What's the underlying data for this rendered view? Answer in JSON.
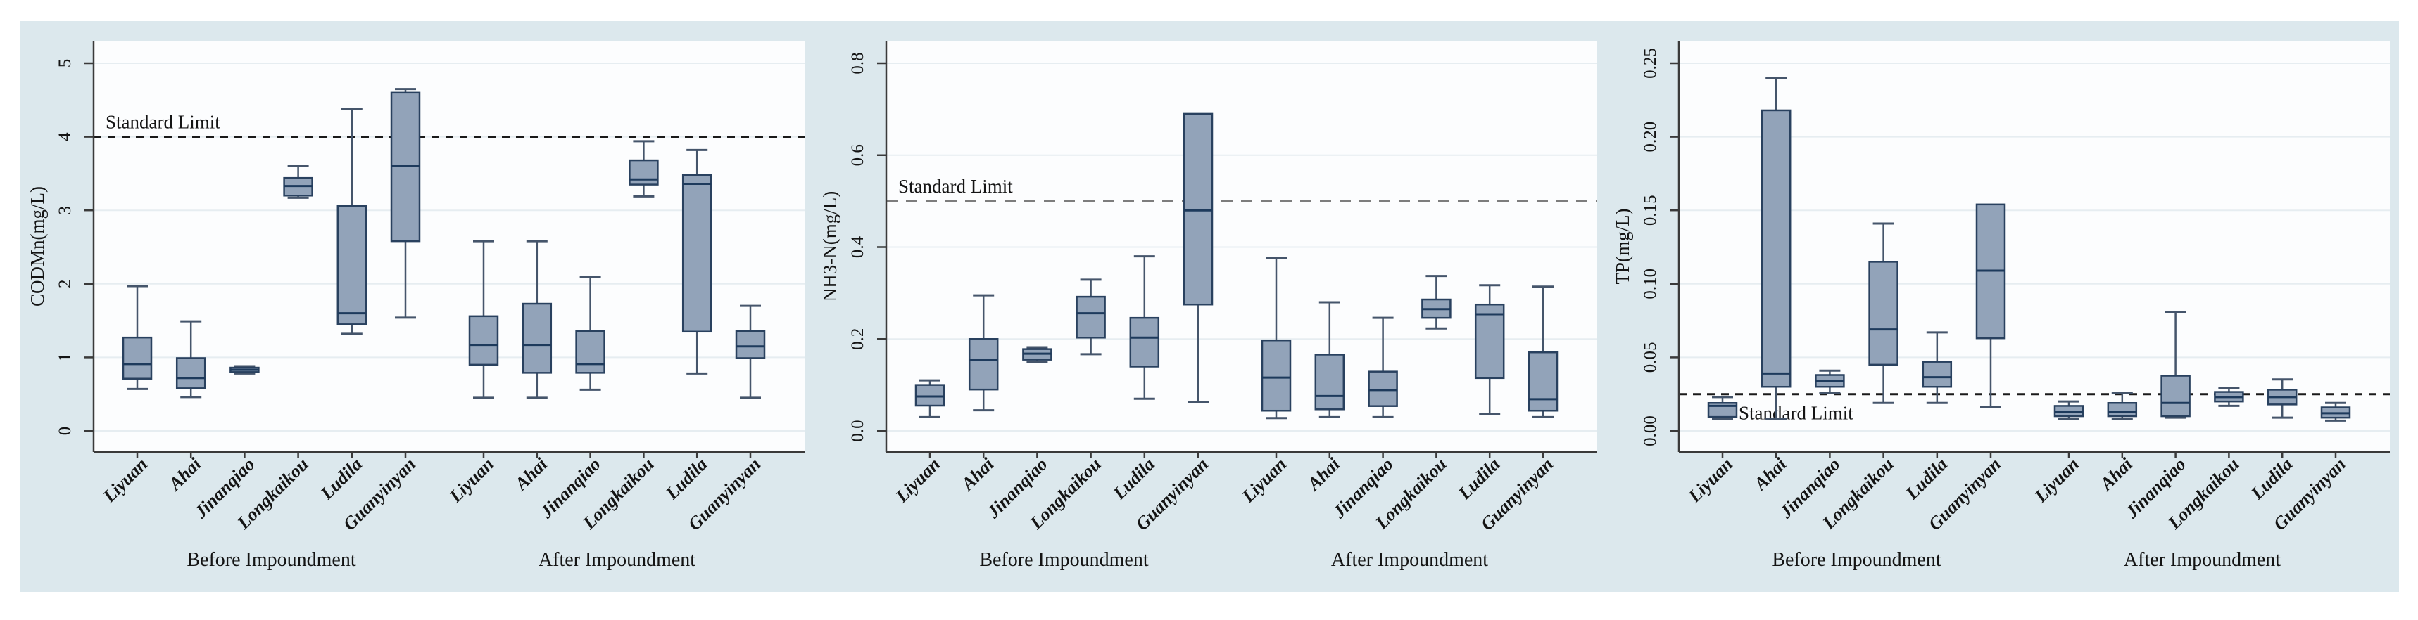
{
  "figure": {
    "title": "",
    "background": "#ffffff",
    "panel_bg": "#dce8ed",
    "plot_bg": "#fcfdfe",
    "grid_color": "#e6edf1",
    "box_fill": "#92a3b9",
    "box_stroke": "#29415f",
    "median_color": "#1d3a5c",
    "whisker_color": "#45556b",
    "axis_color": "#3a3a3a",
    "text_color": "#141414",
    "standard_limit_label": "Standard Limit",
    "groups": [
      "Before Impoundment",
      "After Impoundment"
    ],
    "stations": [
      "Liyuan",
      "Ahai",
      "Jinanqiao",
      "Longkaikou",
      "Ludila",
      "Guanyinyan"
    ]
  },
  "chart_data": [
    {
      "type": "box",
      "id": "codmn",
      "ylabel": "CODMn(mg/L)",
      "yticks": [
        0,
        1,
        2,
        3,
        4,
        5
      ],
      "ytick_labels": [
        "0",
        "1",
        "2",
        "3",
        "4",
        "5"
      ],
      "ylim": [
        -0.29,
        5.29
      ],
      "grid": true,
      "standard_limit": 4,
      "limit_color": "#1a1a1a",
      "limit_dash": "11,9",
      "limit_label_below": false,
      "series": [
        {
          "group": "Before Impoundment",
          "station": "Liyuan",
          "min": 0.57,
          "q1": 0.71,
          "median": 0.91,
          "q3": 1.27,
          "max": 1.97
        },
        {
          "group": "Before Impoundment",
          "station": "Ahai",
          "min": 0.46,
          "q1": 0.58,
          "median": 0.72,
          "q3": 0.99,
          "max": 1.49
        },
        {
          "group": "Before Impoundment",
          "station": "Jinanqiao",
          "min": 0.78,
          "q1": 0.8,
          "median": 0.83,
          "q3": 0.86,
          "max": 0.88
        },
        {
          "group": "Before Impoundment",
          "station": "Longkaikou",
          "min": 3.17,
          "q1": 3.2,
          "median": 3.33,
          "q3": 3.44,
          "max": 3.6
        },
        {
          "group": "Before Impoundment",
          "station": "Ludila",
          "min": 1.32,
          "q1": 1.45,
          "median": 1.6,
          "q3": 3.06,
          "max": 4.38
        },
        {
          "group": "Before Impoundment",
          "station": "Guanyinyan",
          "min": 1.54,
          "q1": 2.58,
          "median": 3.6,
          "q3": 4.6,
          "max": 4.65
        },
        {
          "group": "After Impoundment",
          "station": "Liyuan",
          "min": 0.45,
          "q1": 0.9,
          "median": 1.17,
          "q3": 1.56,
          "max": 2.58
        },
        {
          "group": "After Impoundment",
          "station": "Ahai",
          "min": 0.45,
          "q1": 0.79,
          "median": 1.17,
          "q3": 1.73,
          "max": 2.58
        },
        {
          "group": "After Impoundment",
          "station": "Jinanqiao",
          "min": 0.56,
          "q1": 0.79,
          "median": 0.91,
          "q3": 1.36,
          "max": 2.09
        },
        {
          "group": "After Impoundment",
          "station": "Longkaikou",
          "min": 3.19,
          "q1": 3.35,
          "median": 3.42,
          "q3": 3.68,
          "max": 3.94
        },
        {
          "group": "After Impoundment",
          "station": "Ludila",
          "min": 0.78,
          "q1": 1.35,
          "median": 3.36,
          "q3": 3.48,
          "max": 3.82
        },
        {
          "group": "After Impoundment",
          "station": "Guanyinyan",
          "min": 0.45,
          "q1": 0.99,
          "median": 1.15,
          "q3": 1.36,
          "max": 1.7
        }
      ]
    },
    {
      "type": "box",
      "id": "nh3n",
      "ylabel": "NH3-N(mg/L)",
      "yticks": [
        0.0,
        0.2,
        0.4,
        0.6,
        0.8
      ],
      "ytick_labels": [
        "0.0",
        "0.2",
        "0.4",
        "0.6",
        "0.8"
      ],
      "ylim": [
        -0.046,
        0.846
      ],
      "grid": true,
      "standard_limit": 0.5,
      "limit_color": "#7d7d7d",
      "limit_dash": "16,12",
      "limit_label_below": false,
      "series": [
        {
          "group": "Before Impoundment",
          "station": "Liyuan",
          "min": 0.03,
          "q1": 0.055,
          "median": 0.075,
          "q3": 0.1,
          "max": 0.11
        },
        {
          "group": "Before Impoundment",
          "station": "Ahai",
          "min": 0.045,
          "q1": 0.09,
          "median": 0.155,
          "q3": 0.2,
          "max": 0.295
        },
        {
          "group": "Before Impoundment",
          "station": "Jinanqiao",
          "min": 0.15,
          "q1": 0.155,
          "median": 0.168,
          "q3": 0.178,
          "max": 0.182
        },
        {
          "group": "Before Impoundment",
          "station": "Longkaikou",
          "min": 0.167,
          "q1": 0.203,
          "median": 0.256,
          "q3": 0.292,
          "max": 0.329
        },
        {
          "group": "Before Impoundment",
          "station": "Ludila",
          "min": 0.07,
          "q1": 0.14,
          "median": 0.203,
          "q3": 0.246,
          "max": 0.38
        },
        {
          "group": "Before Impoundment",
          "station": "Guanyinyan",
          "min": 0.062,
          "q1": 0.275,
          "median": 0.48,
          "q3": 0.69,
          "max": 0.69
        },
        {
          "group": "After Impoundment",
          "station": "Liyuan",
          "min": 0.028,
          "q1": 0.044,
          "median": 0.116,
          "q3": 0.197,
          "max": 0.377
        },
        {
          "group": "After Impoundment",
          "station": "Ahai",
          "min": 0.03,
          "q1": 0.047,
          "median": 0.076,
          "q3": 0.166,
          "max": 0.28
        },
        {
          "group": "After Impoundment",
          "station": "Jinanqiao",
          "min": 0.03,
          "q1": 0.054,
          "median": 0.089,
          "q3": 0.129,
          "max": 0.246
        },
        {
          "group": "After Impoundment",
          "station": "Longkaikou",
          "min": 0.223,
          "q1": 0.246,
          "median": 0.265,
          "q3": 0.286,
          "max": 0.337
        },
        {
          "group": "After Impoundment",
          "station": "Ludila",
          "min": 0.037,
          "q1": 0.115,
          "median": 0.254,
          "q3": 0.275,
          "max": 0.317
        },
        {
          "group": "After Impoundment",
          "station": "Guanyinyan",
          "min": 0.03,
          "q1": 0.044,
          "median": 0.069,
          "q3": 0.171,
          "max": 0.314
        }
      ]
    },
    {
      "type": "box",
      "id": "tp",
      "ylabel": "TP(mg/L)",
      "yticks": [
        0.0,
        0.05,
        0.1,
        0.15,
        0.2,
        0.25
      ],
      "ytick_labels": [
        "0.00",
        "0.05",
        "0.10",
        "0.15",
        "0.20",
        "0.25"
      ],
      "ylim": [
        -0.0145,
        0.2645
      ],
      "grid": true,
      "standard_limit": 0.025,
      "limit_color": "#1a1a1a",
      "limit_dash": "11,9",
      "limit_label_below": true,
      "series": [
        {
          "group": "Before Impoundment",
          "station": "Liyuan",
          "min": 0.008,
          "q1": 0.0095,
          "median": 0.017,
          "q3": 0.019,
          "max": 0.023
        },
        {
          "group": "Before Impoundment",
          "station": "Ahai",
          "min": 0.008,
          "q1": 0.03,
          "median": 0.039,
          "q3": 0.218,
          "max": 0.24
        },
        {
          "group": "Before Impoundment",
          "station": "Jinanqiao",
          "min": 0.026,
          "q1": 0.03,
          "median": 0.034,
          "q3": 0.038,
          "max": 0.041
        },
        {
          "group": "Before Impoundment",
          "station": "Longkaikou",
          "min": 0.019,
          "q1": 0.045,
          "median": 0.069,
          "q3": 0.115,
          "max": 0.141
        },
        {
          "group": "Before Impoundment",
          "station": "Ludila",
          "min": 0.019,
          "q1": 0.03,
          "median": 0.0365,
          "q3": 0.047,
          "max": 0.067
        },
        {
          "group": "Before Impoundment",
          "station": "Guanyinyan",
          "min": 0.016,
          "q1": 0.063,
          "median": 0.109,
          "q3": 0.154,
          "max": 0.154
        },
        {
          "group": "After Impoundment",
          "station": "Liyuan",
          "min": 0.008,
          "q1": 0.01,
          "median": 0.013,
          "q3": 0.017,
          "max": 0.02
        },
        {
          "group": "After Impoundment",
          "station": "Ahai",
          "min": 0.008,
          "q1": 0.01,
          "median": 0.013,
          "q3": 0.019,
          "max": 0.026
        },
        {
          "group": "After Impoundment",
          "station": "Jinanqiao",
          "min": 0.009,
          "q1": 0.01,
          "median": 0.019,
          "q3": 0.0375,
          "max": 0.081
        },
        {
          "group": "After Impoundment",
          "station": "Longkaikou",
          "min": 0.017,
          "q1": 0.02,
          "median": 0.023,
          "q3": 0.0265,
          "max": 0.029
        },
        {
          "group": "After Impoundment",
          "station": "Ludila",
          "min": 0.009,
          "q1": 0.018,
          "median": 0.023,
          "q3": 0.028,
          "max": 0.035
        },
        {
          "group": "After Impoundment",
          "station": "Guanyinyan",
          "min": 0.007,
          "q1": 0.009,
          "median": 0.012,
          "q3": 0.016,
          "max": 0.019
        }
      ]
    }
  ]
}
